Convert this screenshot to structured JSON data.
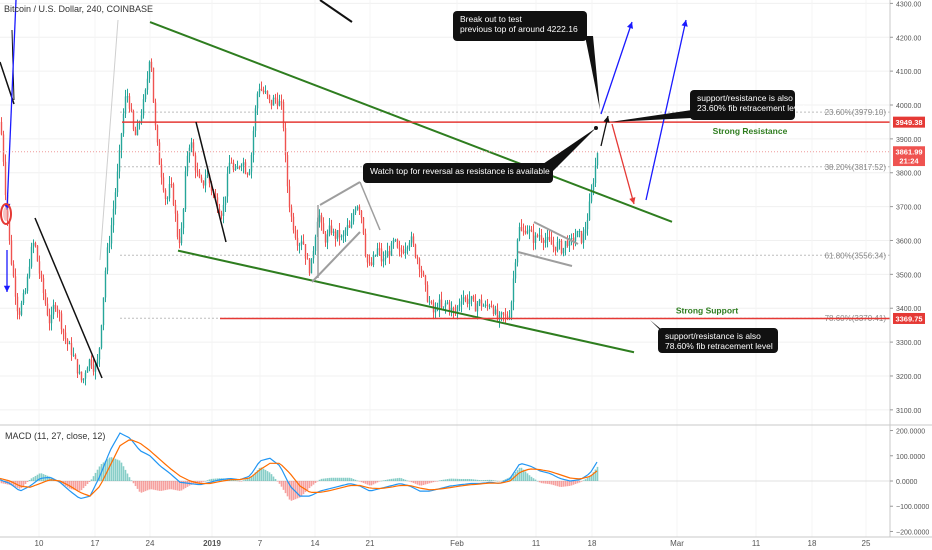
{
  "header": {
    "symbol_title": "Bitcoin / U.S. Dollar, 240, COINBASE"
  },
  "macd_header": "MACD (11, 27, close, 12)",
  "colors": {
    "up": "#26a69a",
    "down": "#ef5350",
    "trend_green": "#2e7d1f",
    "level_red": "#e53935",
    "arrow_blue": "#1a1aff",
    "fib_text": "#888888",
    "macd_line": "#2196f3",
    "signal_line": "#ff6d00"
  },
  "annotations": {
    "breakout": [
      "Break out to test",
      "previous top of around 4222.16"
    ],
    "support_resistance_top": [
      "support/resistance is also",
      "23.60% fib retracement level"
    ],
    "watch_top": "Watch top for reversal as resistance is available",
    "support_resistance_bottom": [
      "support/resistance is also",
      "78.60% fib retracement level"
    ],
    "strong_resistance": "Strong Resistance",
    "strong_support": "Strong Support"
  },
  "chart_data": [
    {
      "type": "candlestick",
      "title": "Bitcoin / U.S. Dollar, 240, COINBASE",
      "x_tick_labels": [
        "10",
        "17",
        "24",
        "2019",
        "7",
        "14",
        "21",
        "Feb",
        "11",
        "18",
        "Mar",
        "11",
        "18",
        "25"
      ],
      "y_tick_labels": [
        "3100.00",
        "3200.00",
        "3300.00",
        "3400.00",
        "3500.00",
        "3600.00",
        "3700.00",
        "3800.00",
        "3900.00",
        "4000.00",
        "4100.00",
        "4200.00",
        "4300.00"
      ],
      "ylim": [
        3070,
        4310
      ],
      "price_tags": [
        {
          "label": "3949.38",
          "value": 3949.38,
          "color": "#e53935"
        },
        {
          "label": "3861.99",
          "value": 3861.99,
          "color": "#ef5350"
        },
        {
          "label": "21:24",
          "value": 3836,
          "color": "#ef5350"
        },
        {
          "label": "3369.75",
          "value": 3369.75,
          "color": "#e53935"
        }
      ],
      "fib_levels": [
        {
          "label": "23.60%(3979.10)",
          "value": 3979.1
        },
        {
          "label": "38.20%(3817.52)",
          "value": 3817.52
        },
        {
          "label": "61.80%(3556.34)",
          "value": 3556.34
        },
        {
          "label": "78.60%(3370.41)",
          "value": 3370.41
        }
      ],
      "horizontal_levels": [
        {
          "name": "resistance",
          "value": 3949.38
        },
        {
          "name": "support",
          "value": 3369.75
        }
      ],
      "close_path": [
        [
          0,
          3950
        ],
        [
          3,
          3840
        ],
        [
          6,
          3700
        ],
        [
          10,
          3560
        ],
        [
          14,
          3470
        ],
        [
          18,
          3380
        ],
        [
          22,
          3420
        ],
        [
          26,
          3460
        ],
        [
          30,
          3560
        ],
        [
          34,
          3600
        ],
        [
          38,
          3520
        ],
        [
          42,
          3460
        ],
        [
          46,
          3400
        ],
        [
          50,
          3350
        ],
        [
          54,
          3420
        ],
        [
          58,
          3390
        ],
        [
          62,
          3340
        ],
        [
          66,
          3300
        ],
        [
          70,
          3280
        ],
        [
          74,
          3250
        ],
        [
          78,
          3210
        ],
        [
          82,
          3180
        ],
        [
          86,
          3230
        ],
        [
          90,
          3250
        ],
        [
          94,
          3220
        ],
        [
          98,
          3250
        ],
        [
          102,
          3400
        ],
        [
          106,
          3550
        ],
        [
          110,
          3620
        ],
        [
          114,
          3720
        ],
        [
          118,
          3820
        ],
        [
          122,
          3950
        ],
        [
          126,
          4040
        ],
        [
          130,
          3990
        ],
        [
          134,
          3900
        ],
        [
          138,
          3940
        ],
        [
          142,
          3990
        ],
        [
          146,
          4050
        ],
        [
          150,
          4170
        ],
        [
          154,
          3960
        ],
        [
          158,
          3850
        ],
        [
          162,
          3780
        ],
        [
          166,
          3710
        ],
        [
          170,
          3770
        ],
        [
          174,
          3700
        ],
        [
          178,
          3590
        ],
        [
          182,
          3640
        ],
        [
          186,
          3840
        ],
        [
          190,
          3900
        ],
        [
          194,
          3830
        ],
        [
          198,
          3780
        ],
        [
          202,
          3760
        ],
        [
          206,
          3800
        ],
        [
          210,
          3760
        ],
        [
          214,
          3730
        ],
        [
          218,
          3700
        ],
        [
          222,
          3680
        ],
        [
          226,
          3760
        ],
        [
          230,
          3850
        ],
        [
          234,
          3790
        ],
        [
          238,
          3820
        ],
        [
          242,
          3840
        ],
        [
          246,
          3800
        ],
        [
          250,
          3820
        ],
        [
          254,
          3960
        ],
        [
          258,
          4060
        ],
        [
          262,
          4040
        ],
        [
          266,
          4030
        ],
        [
          270,
          4000
        ],
        [
          274,
          4020
        ],
        [
          278,
          4010
        ],
        [
          282,
          3990
        ],
        [
          286,
          3790
        ],
        [
          290,
          3680
        ],
        [
          294,
          3630
        ],
        [
          298,
          3590
        ],
        [
          302,
          3610
        ],
        [
          306,
          3540
        ],
        [
          310,
          3510
        ],
        [
          314,
          3600
        ],
        [
          318,
          3690
        ],
        [
          322,
          3620
        ],
        [
          326,
          3600
        ],
        [
          330,
          3640
        ],
        [
          334,
          3610
        ],
        [
          338,
          3620
        ],
        [
          342,
          3600
        ],
        [
          346,
          3640
        ],
        [
          350,
          3630
        ],
        [
          354,
          3700
        ],
        [
          358,
          3710
        ],
        [
          362,
          3660
        ],
        [
          366,
          3540
        ],
        [
          370,
          3520
        ],
        [
          374,
          3550
        ],
        [
          378,
          3580
        ],
        [
          382,
          3530
        ],
        [
          386,
          3560
        ],
        [
          390,
          3570
        ],
        [
          394,
          3600
        ],
        [
          398,
          3560
        ],
        [
          402,
          3570
        ],
        [
          406,
          3590
        ],
        [
          410,
          3610
        ],
        [
          414,
          3570
        ],
        [
          418,
          3540
        ],
        [
          422,
          3500
        ],
        [
          426,
          3440
        ],
        [
          430,
          3410
        ],
        [
          434,
          3380
        ],
        [
          438,
          3420
        ],
        [
          442,
          3390
        ],
        [
          446,
          3420
        ],
        [
          450,
          3400
        ],
        [
          454,
          3380
        ],
        [
          458,
          3410
        ],
        [
          462,
          3440
        ],
        [
          466,
          3420
        ],
        [
          470,
          3430
        ],
        [
          474,
          3400
        ],
        [
          478,
          3420
        ],
        [
          482,
          3410
        ],
        [
          486,
          3400
        ],
        [
          490,
          3420
        ],
        [
          494,
          3390
        ],
        [
          498,
          3360
        ],
        [
          502,
          3380
        ],
        [
          506,
          3370
        ],
        [
          510,
          3390
        ],
        [
          514,
          3520
        ],
        [
          518,
          3640
        ],
        [
          522,
          3620
        ],
        [
          526,
          3640
        ],
        [
          530,
          3620
        ],
        [
          534,
          3600
        ],
        [
          538,
          3620
        ],
        [
          542,
          3610
        ],
        [
          546,
          3600
        ],
        [
          550,
          3590
        ],
        [
          554,
          3580
        ],
        [
          558,
          3590
        ],
        [
          562,
          3570
        ],
        [
          566,
          3600
        ],
        [
          570,
          3590
        ],
        [
          574,
          3610
        ],
        [
          578,
          3620
        ],
        [
          582,
          3600
        ],
        [
          586,
          3650
        ],
        [
          590,
          3720
        ],
        [
          594,
          3800
        ],
        [
          597,
          3862
        ]
      ],
      "trend_lines": [
        {
          "name": "upper-descending-trendline",
          "color": "green",
          "from": [
            150,
            4245
          ],
          "to": [
            672,
            3655
          ]
        },
        {
          "name": "lower-descending-trendline",
          "color": "green",
          "from": [
            178,
            3570
          ],
          "to": [
            634,
            3270
          ]
        },
        {
          "name": "resistance-line",
          "color": "red",
          "from": [
            122,
            3949.38
          ],
          "to": [
            890,
            3949.38
          ]
        },
        {
          "name": "support-line",
          "color": "red",
          "from": [
            220,
            3369.75
          ],
          "to": [
            890,
            3369.75
          ]
        }
      ]
    },
    {
      "type": "macd",
      "title": "MACD (11, 27, close, 12)",
      "y_tick_labels": [
        "200.0000",
        "100.0000",
        "0.0000",
        "−100.0000",
        "−200.0000"
      ],
      "ylim": [
        -210,
        210
      ],
      "macd": [
        [
          0,
          5
        ],
        [
          10,
          -10
        ],
        [
          20,
          -40
        ],
        [
          30,
          -20
        ],
        [
          40,
          10
        ],
        [
          50,
          15
        ],
        [
          60,
          -5
        ],
        [
          70,
          -40
        ],
        [
          80,
          -70
        ],
        [
          90,
          -60
        ],
        [
          100,
          20
        ],
        [
          110,
          120
        ],
        [
          120,
          190
        ],
        [
          130,
          170
        ],
        [
          140,
          120
        ],
        [
          150,
          100
        ],
        [
          160,
          60
        ],
        [
          170,
          30
        ],
        [
          180,
          -5
        ],
        [
          190,
          -10
        ],
        [
          200,
          -15
        ],
        [
          210,
          -5
        ],
        [
          220,
          5
        ],
        [
          230,
          10
        ],
        [
          240,
          5
        ],
        [
          250,
          20
        ],
        [
          260,
          80
        ],
        [
          270,
          90
        ],
        [
          280,
          60
        ],
        [
          290,
          -20
        ],
        [
          300,
          -60
        ],
        [
          310,
          -60
        ],
        [
          320,
          -40
        ],
        [
          330,
          -30
        ],
        [
          340,
          -20
        ],
        [
          350,
          -10
        ],
        [
          360,
          -20
        ],
        [
          370,
          -40
        ],
        [
          380,
          -30
        ],
        [
          390,
          -20
        ],
        [
          400,
          -10
        ],
        [
          410,
          -20
        ],
        [
          420,
          -40
        ],
        [
          430,
          -40
        ],
        [
          440,
          -30
        ],
        [
          450,
          -20
        ],
        [
          460,
          -15
        ],
        [
          470,
          -10
        ],
        [
          480,
          -10
        ],
        [
          490,
          -5
        ],
        [
          500,
          -10
        ],
        [
          510,
          10
        ],
        [
          520,
          70
        ],
        [
          530,
          60
        ],
        [
          540,
          40
        ],
        [
          550,
          30
        ],
        [
          560,
          10
        ],
        [
          570,
          0
        ],
        [
          580,
          5
        ],
        [
          590,
          30
        ],
        [
          597,
          75
        ]
      ],
      "signal": [
        [
          0,
          10
        ],
        [
          10,
          0
        ],
        [
          20,
          -20
        ],
        [
          30,
          -25
        ],
        [
          40,
          -10
        ],
        [
          50,
          5
        ],
        [
          60,
          0
        ],
        [
          70,
          -20
        ],
        [
          80,
          -45
        ],
        [
          90,
          -60
        ],
        [
          100,
          -20
        ],
        [
          110,
          60
        ],
        [
          120,
          140
        ],
        [
          130,
          165
        ],
        [
          140,
          150
        ],
        [
          150,
          120
        ],
        [
          160,
          85
        ],
        [
          170,
          50
        ],
        [
          180,
          20
        ],
        [
          190,
          0
        ],
        [
          200,
          -10
        ],
        [
          210,
          -10
        ],
        [
          220,
          -2
        ],
        [
          230,
          5
        ],
        [
          240,
          6
        ],
        [
          250,
          12
        ],
        [
          260,
          45
        ],
        [
          270,
          70
        ],
        [
          280,
          70
        ],
        [
          290,
          30
        ],
        [
          300,
          -20
        ],
        [
          310,
          -45
        ],
        [
          320,
          -45
        ],
        [
          330,
          -38
        ],
        [
          340,
          -28
        ],
        [
          350,
          -18
        ],
        [
          360,
          -18
        ],
        [
          370,
          -28
        ],
        [
          380,
          -30
        ],
        [
          390,
          -25
        ],
        [
          400,
          -18
        ],
        [
          410,
          -18
        ],
        [
          420,
          -28
        ],
        [
          430,
          -35
        ],
        [
          440,
          -32
        ],
        [
          450,
          -26
        ],
        [
          460,
          -20
        ],
        [
          470,
          -15
        ],
        [
          480,
          -12
        ],
        [
          490,
          -8
        ],
        [
          500,
          -9
        ],
        [
          510,
          0
        ],
        [
          520,
          35
        ],
        [
          530,
          48
        ],
        [
          540,
          45
        ],
        [
          550,
          38
        ],
        [
          560,
          25
        ],
        [
          570,
          12
        ],
        [
          580,
          8
        ],
        [
          590,
          18
        ],
        [
          597,
          40
        ]
      ]
    }
  ]
}
